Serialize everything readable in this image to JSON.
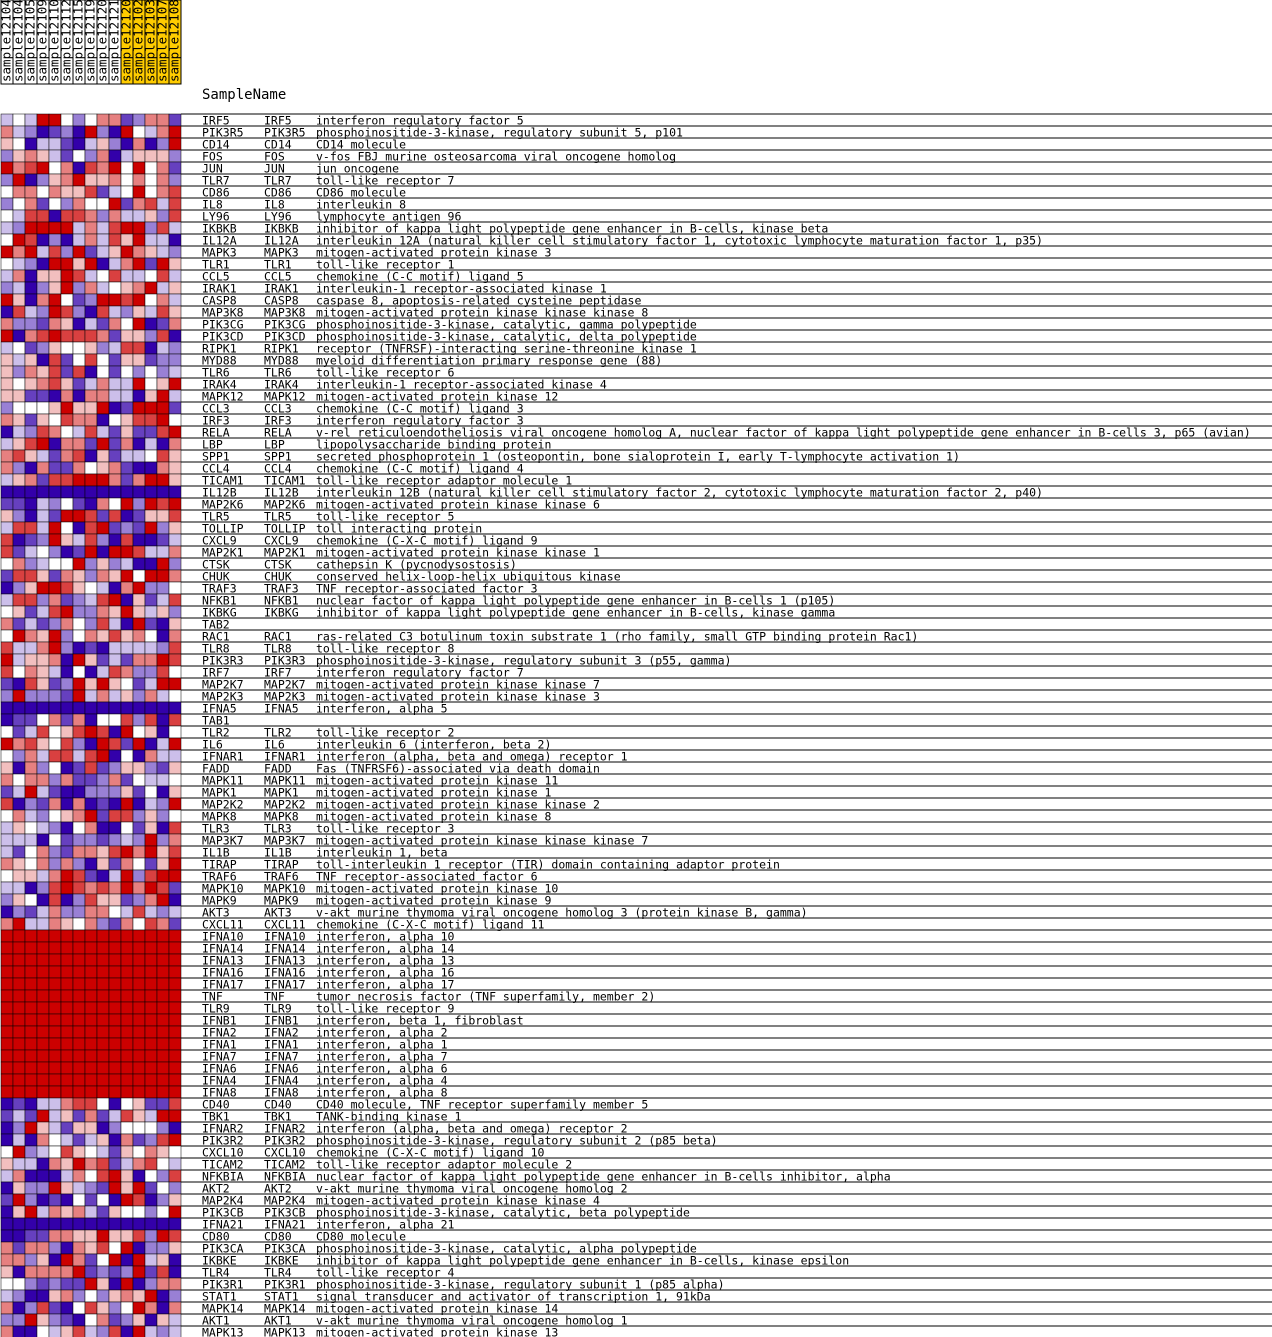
{
  "chart_data": {
    "type": "heatmap",
    "title": "SampleName",
    "samples": [
      {
        "name": "sample12104",
        "group": "A"
      },
      {
        "name": "sample12104",
        "group": "A"
      },
      {
        "name": "sample12105",
        "group": "A"
      },
      {
        "name": "sample12109",
        "group": "A"
      },
      {
        "name": "sample12110",
        "group": "A"
      },
      {
        "name": "sample12112",
        "group": "A"
      },
      {
        "name": "sample12115",
        "group": "A"
      },
      {
        "name": "sample12119",
        "group": "A"
      },
      {
        "name": "sample12120",
        "group": "A"
      },
      {
        "name": "sample12121",
        "group": "A"
      },
      {
        "name": "sample12120",
        "group": "B"
      },
      {
        "name": "sample12102",
        "group": "B"
      },
      {
        "name": "sample12103",
        "group": "B"
      },
      {
        "name": "sample12107",
        "group": "B"
      },
      {
        "name": "sample12108",
        "group": "B"
      }
    ],
    "group_colors": {
      "A": "#ffffff",
      "B": "#ffcc00"
    },
    "color_scale": {
      "low": "#3300aa",
      "mid": "#ffffff",
      "high": "#cc0000",
      "range": [
        -2,
        2
      ]
    },
    "rows": [
      [
        "IRF5",
        "IRF5",
        "interferon regulatory factor 5"
      ],
      [
        "PIK3R5",
        "PIK3R5",
        "phosphoinositide-3-kinase, regulatory subunit 5, p101"
      ],
      [
        "CD14",
        "CD14",
        "CD14 molecule"
      ],
      [
        "FOS",
        "FOS",
        "v-fos FBJ murine osteosarcoma viral oncogene homolog"
      ],
      [
        "JUN",
        "JUN",
        "jun oncogene"
      ],
      [
        "TLR7",
        "TLR7",
        "toll-like receptor 7"
      ],
      [
        "CD86",
        "CD86",
        "CD86 molecule"
      ],
      [
        "IL8",
        "IL8",
        "interleukin 8"
      ],
      [
        "LY96",
        "LY96",
        "lymphocyte antigen 96"
      ],
      [
        "IKBKB",
        "IKBKB",
        "inhibitor of kappa light polypeptide gene enhancer in B-cells, kinase beta"
      ],
      [
        "IL12A",
        "IL12A",
        "interleukin 12A (natural killer cell stimulatory factor 1, cytotoxic lymphocyte maturation factor 1, p35)"
      ],
      [
        "MAPK3",
        "MAPK3",
        "mitogen-activated protein kinase 3"
      ],
      [
        "TLR1",
        "TLR1",
        "toll-like receptor 1"
      ],
      [
        "CCL5",
        "CCL5",
        "chemokine (C-C motif) ligand 5"
      ],
      [
        "IRAK1",
        "IRAK1",
        "interleukin-1 receptor-associated kinase 1"
      ],
      [
        "CASP8",
        "CASP8",
        "caspase 8, apoptosis-related cysteine peptidase"
      ],
      [
        "MAP3K8",
        "MAP3K8",
        "mitogen-activated protein kinase kinase kinase 8"
      ],
      [
        "PIK3CG",
        "PIK3CG",
        "phosphoinositide-3-kinase, catalytic, gamma polypeptide"
      ],
      [
        "PIK3CD",
        "PIK3CD",
        "phosphoinositide-3-kinase, catalytic, delta polypeptide"
      ],
      [
        "RIPK1",
        "RIPK1",
        "receptor (TNFRSF)-interacting serine-threonine kinase 1"
      ],
      [
        "MYD88",
        "MYD88",
        "myeloid differentiation primary response gene (88)"
      ],
      [
        "TLR6",
        "TLR6",
        "toll-like receptor 6"
      ],
      [
        "IRAK4",
        "IRAK4",
        "interleukin-1 receptor-associated kinase 4"
      ],
      [
        "MAPK12",
        "MAPK12",
        "mitogen-activated protein kinase 12"
      ],
      [
        "CCL3",
        "CCL3",
        "chemokine (C-C motif) ligand 3"
      ],
      [
        "IRF3",
        "IRF3",
        "interferon regulatory factor 3"
      ],
      [
        "RELA",
        "RELA",
        "v-rel reticuloendotheliosis viral oncogene homolog A, nuclear factor of kappa light polypeptide gene enhancer in B-cells 3, p65 (avian)"
      ],
      [
        "LBP",
        "LBP",
        "lipopolysaccharide binding protein"
      ],
      [
        "SPP1",
        "SPP1",
        "secreted phosphoprotein 1 (osteopontin, bone sialoprotein I, early T-lymphocyte activation 1)"
      ],
      [
        "CCL4",
        "CCL4",
        "chemokine (C-C motif) ligand 4"
      ],
      [
        "TICAM1",
        "TICAM1",
        "toll-like receptor adaptor molecule 1"
      ],
      [
        "IL12B",
        "IL12B",
        "interleukin 12B (natural killer cell stimulatory factor 2, cytotoxic lymphocyte maturation factor 2, p40)"
      ],
      [
        "MAP2K6",
        "MAP2K6",
        "mitogen-activated protein kinase kinase 6"
      ],
      [
        "TLR5",
        "TLR5",
        "toll-like receptor 5"
      ],
      [
        "TOLLIP",
        "TOLLIP",
        "toll interacting protein"
      ],
      [
        "CXCL9",
        "CXCL9",
        "chemokine (C-X-C motif) ligand 9"
      ],
      [
        "MAP2K1",
        "MAP2K1",
        "mitogen-activated protein kinase kinase 1"
      ],
      [
        "CTSK",
        "CTSK",
        "cathepsin K (pycnodysostosis)"
      ],
      [
        "CHUK",
        "CHUK",
        "conserved helix-loop-helix ubiquitous kinase"
      ],
      [
        "TRAF3",
        "TRAF3",
        "TNF receptor-associated factor 3"
      ],
      [
        "NFKB1",
        "NFKB1",
        "nuclear factor of kappa light polypeptide gene enhancer in B-cells 1 (p105)"
      ],
      [
        "IKBKG",
        "IKBKG",
        "inhibitor of kappa light polypeptide gene enhancer in B-cells, kinase gamma"
      ],
      [
        "TAB2",
        "",
        ""
      ],
      [
        "RAC1",
        "RAC1",
        "ras-related C3 botulinum toxin substrate 1 (rho family, small GTP binding protein Rac1)"
      ],
      [
        "TLR8",
        "TLR8",
        "toll-like receptor 8"
      ],
      [
        "PIK3R3",
        "PIK3R3",
        "phosphoinositide-3-kinase, regulatory subunit 3 (p55, gamma)"
      ],
      [
        "IRF7",
        "IRF7",
        "interferon regulatory factor 7"
      ],
      [
        "MAP2K7",
        "MAP2K7",
        "mitogen-activated protein kinase kinase 7"
      ],
      [
        "MAP2K3",
        "MAP2K3",
        "mitogen-activated protein kinase kinase 3"
      ],
      [
        "IFNA5",
        "IFNA5",
        "interferon, alpha 5"
      ],
      [
        "TAB1",
        "",
        ""
      ],
      [
        "TLR2",
        "TLR2",
        "toll-like receptor 2"
      ],
      [
        "IL6",
        "IL6",
        "interleukin 6 (interferon, beta 2)"
      ],
      [
        "IFNAR1",
        "IFNAR1",
        "interferon (alpha, beta and omega) receptor 1"
      ],
      [
        "FADD",
        "FADD",
        "Fas (TNFRSF6)-associated via death domain"
      ],
      [
        "MAPK11",
        "MAPK11",
        "mitogen-activated protein kinase 11"
      ],
      [
        "MAPK1",
        "MAPK1",
        "mitogen-activated protein kinase 1"
      ],
      [
        "MAP2K2",
        "MAP2K2",
        "mitogen-activated protein kinase kinase 2"
      ],
      [
        "MAPK8",
        "MAPK8",
        "mitogen-activated protein kinase 8"
      ],
      [
        "TLR3",
        "TLR3",
        "toll-like receptor 3"
      ],
      [
        "MAP3K7",
        "MAP3K7",
        "mitogen-activated protein kinase kinase kinase 7"
      ],
      [
        "IL1B",
        "IL1B",
        "interleukin 1, beta"
      ],
      [
        "TIRAP",
        "TIRAP",
        "toll-interleukin 1 receptor (TIR) domain containing adaptor protein"
      ],
      [
        "TRAF6",
        "TRAF6",
        "TNF receptor-associated factor 6"
      ],
      [
        "MAPK10",
        "MAPK10",
        "mitogen-activated protein kinase 10"
      ],
      [
        "MAPK9",
        "MAPK9",
        "mitogen-activated protein kinase 9"
      ],
      [
        "AKT3",
        "AKT3",
        "v-akt murine thymoma viral oncogene homolog 3 (protein kinase B, gamma)"
      ],
      [
        "CXCL11",
        "CXCL11",
        "chemokine (C-X-C motif) ligand 11"
      ],
      [
        "IFNA10",
        "IFNA10",
        "interferon, alpha 10"
      ],
      [
        "IFNA14",
        "IFNA14",
        "interferon, alpha 14"
      ],
      [
        "IFNA13",
        "IFNA13",
        "interferon, alpha 13"
      ],
      [
        "IFNA16",
        "IFNA16",
        "interferon, alpha 16"
      ],
      [
        "IFNA17",
        "IFNA17",
        "interferon, alpha 17"
      ],
      [
        "TNF",
        "TNF",
        "tumor necrosis factor (TNF superfamily, member 2)"
      ],
      [
        "TLR9",
        "TLR9",
        "toll-like receptor 9"
      ],
      [
        "IFNB1",
        "IFNB1",
        "interferon, beta 1, fibroblast"
      ],
      [
        "IFNA2",
        "IFNA2",
        "interferon, alpha 2"
      ],
      [
        "IFNA1",
        "IFNA1",
        "interferon, alpha 1"
      ],
      [
        "IFNA7",
        "IFNA7",
        "interferon, alpha 7"
      ],
      [
        "IFNA6",
        "IFNA6",
        "interferon, alpha 6"
      ],
      [
        "IFNA4",
        "IFNA4",
        "interferon, alpha 4"
      ],
      [
        "IFNA8",
        "IFNA8",
        "interferon, alpha 8"
      ],
      [
        "CD40",
        "CD40",
        "CD40 molecule, TNF receptor superfamily member 5"
      ],
      [
        "TBK1",
        "TBK1",
        "TANK-binding kinase 1"
      ],
      [
        "IFNAR2",
        "IFNAR2",
        "interferon (alpha, beta and omega) receptor 2"
      ],
      [
        "PIK3R2",
        "PIK3R2",
        "phosphoinositide-3-kinase, regulatory subunit 2 (p85 beta)"
      ],
      [
        "CXCL10",
        "CXCL10",
        "chemokine (C-X-C motif) ligand 10"
      ],
      [
        "TICAM2",
        "TICAM2",
        "toll-like receptor adaptor molecule 2"
      ],
      [
        "NFKBIA",
        "NFKBIA",
        "nuclear factor of kappa light polypeptide gene enhancer in B-cells inhibitor, alpha"
      ],
      [
        "AKT2",
        "AKT2",
        "v-akt murine thymoma viral oncogene homolog 2"
      ],
      [
        "MAP2K4",
        "MAP2K4",
        "mitogen-activated protein kinase kinase 4"
      ],
      [
        "PIK3CB",
        "PIK3CB",
        "phosphoinositide-3-kinase, catalytic, beta polypeptide"
      ],
      [
        "IFNA21",
        "IFNA21",
        "interferon, alpha 21"
      ],
      [
        "CD80",
        "CD80",
        "CD80 molecule"
      ],
      [
        "PIK3CA",
        "PIK3CA",
        "phosphoinositide-3-kinase, catalytic, alpha polypeptide"
      ],
      [
        "IKBKE",
        "IKBKE",
        "inhibitor of kappa light polypeptide gene enhancer in B-cells, kinase epsilon"
      ],
      [
        "TLR4",
        "TLR4",
        "toll-like receptor 4"
      ],
      [
        "PIK3R1",
        "PIK3R1",
        "phosphoinositide-3-kinase, regulatory subunit 1 (p85 alpha)"
      ],
      [
        "STAT1",
        "STAT1",
        "signal transducer and activator of transcription 1, 91kDa"
      ],
      [
        "MAPK14",
        "MAPK14",
        "mitogen-activated protein kinase 14"
      ],
      [
        "AKT1",
        "AKT1",
        "v-akt murine thymoma viral oncogene homolog 1"
      ],
      [
        "MAPK13",
        "MAPK13",
        "mitogen-activated protein kinase 13"
      ]
    ],
    "constant_rows": {
      "IFNA10": 2,
      "IFNA14": 2,
      "IFNA13": 2,
      "IFNA16": 2,
      "IFNA17": 2,
      "TNF": 2,
      "TLR9": 2,
      "IFNB1": 2,
      "IFNA2": 2,
      "IFNA1": 2,
      "IFNA7": 2,
      "IFNA6": 2,
      "IFNA4": 2,
      "IFNA8": 2,
      "IFNA5": -2,
      "IFNA21": -2,
      "IL12B": -2
    }
  }
}
